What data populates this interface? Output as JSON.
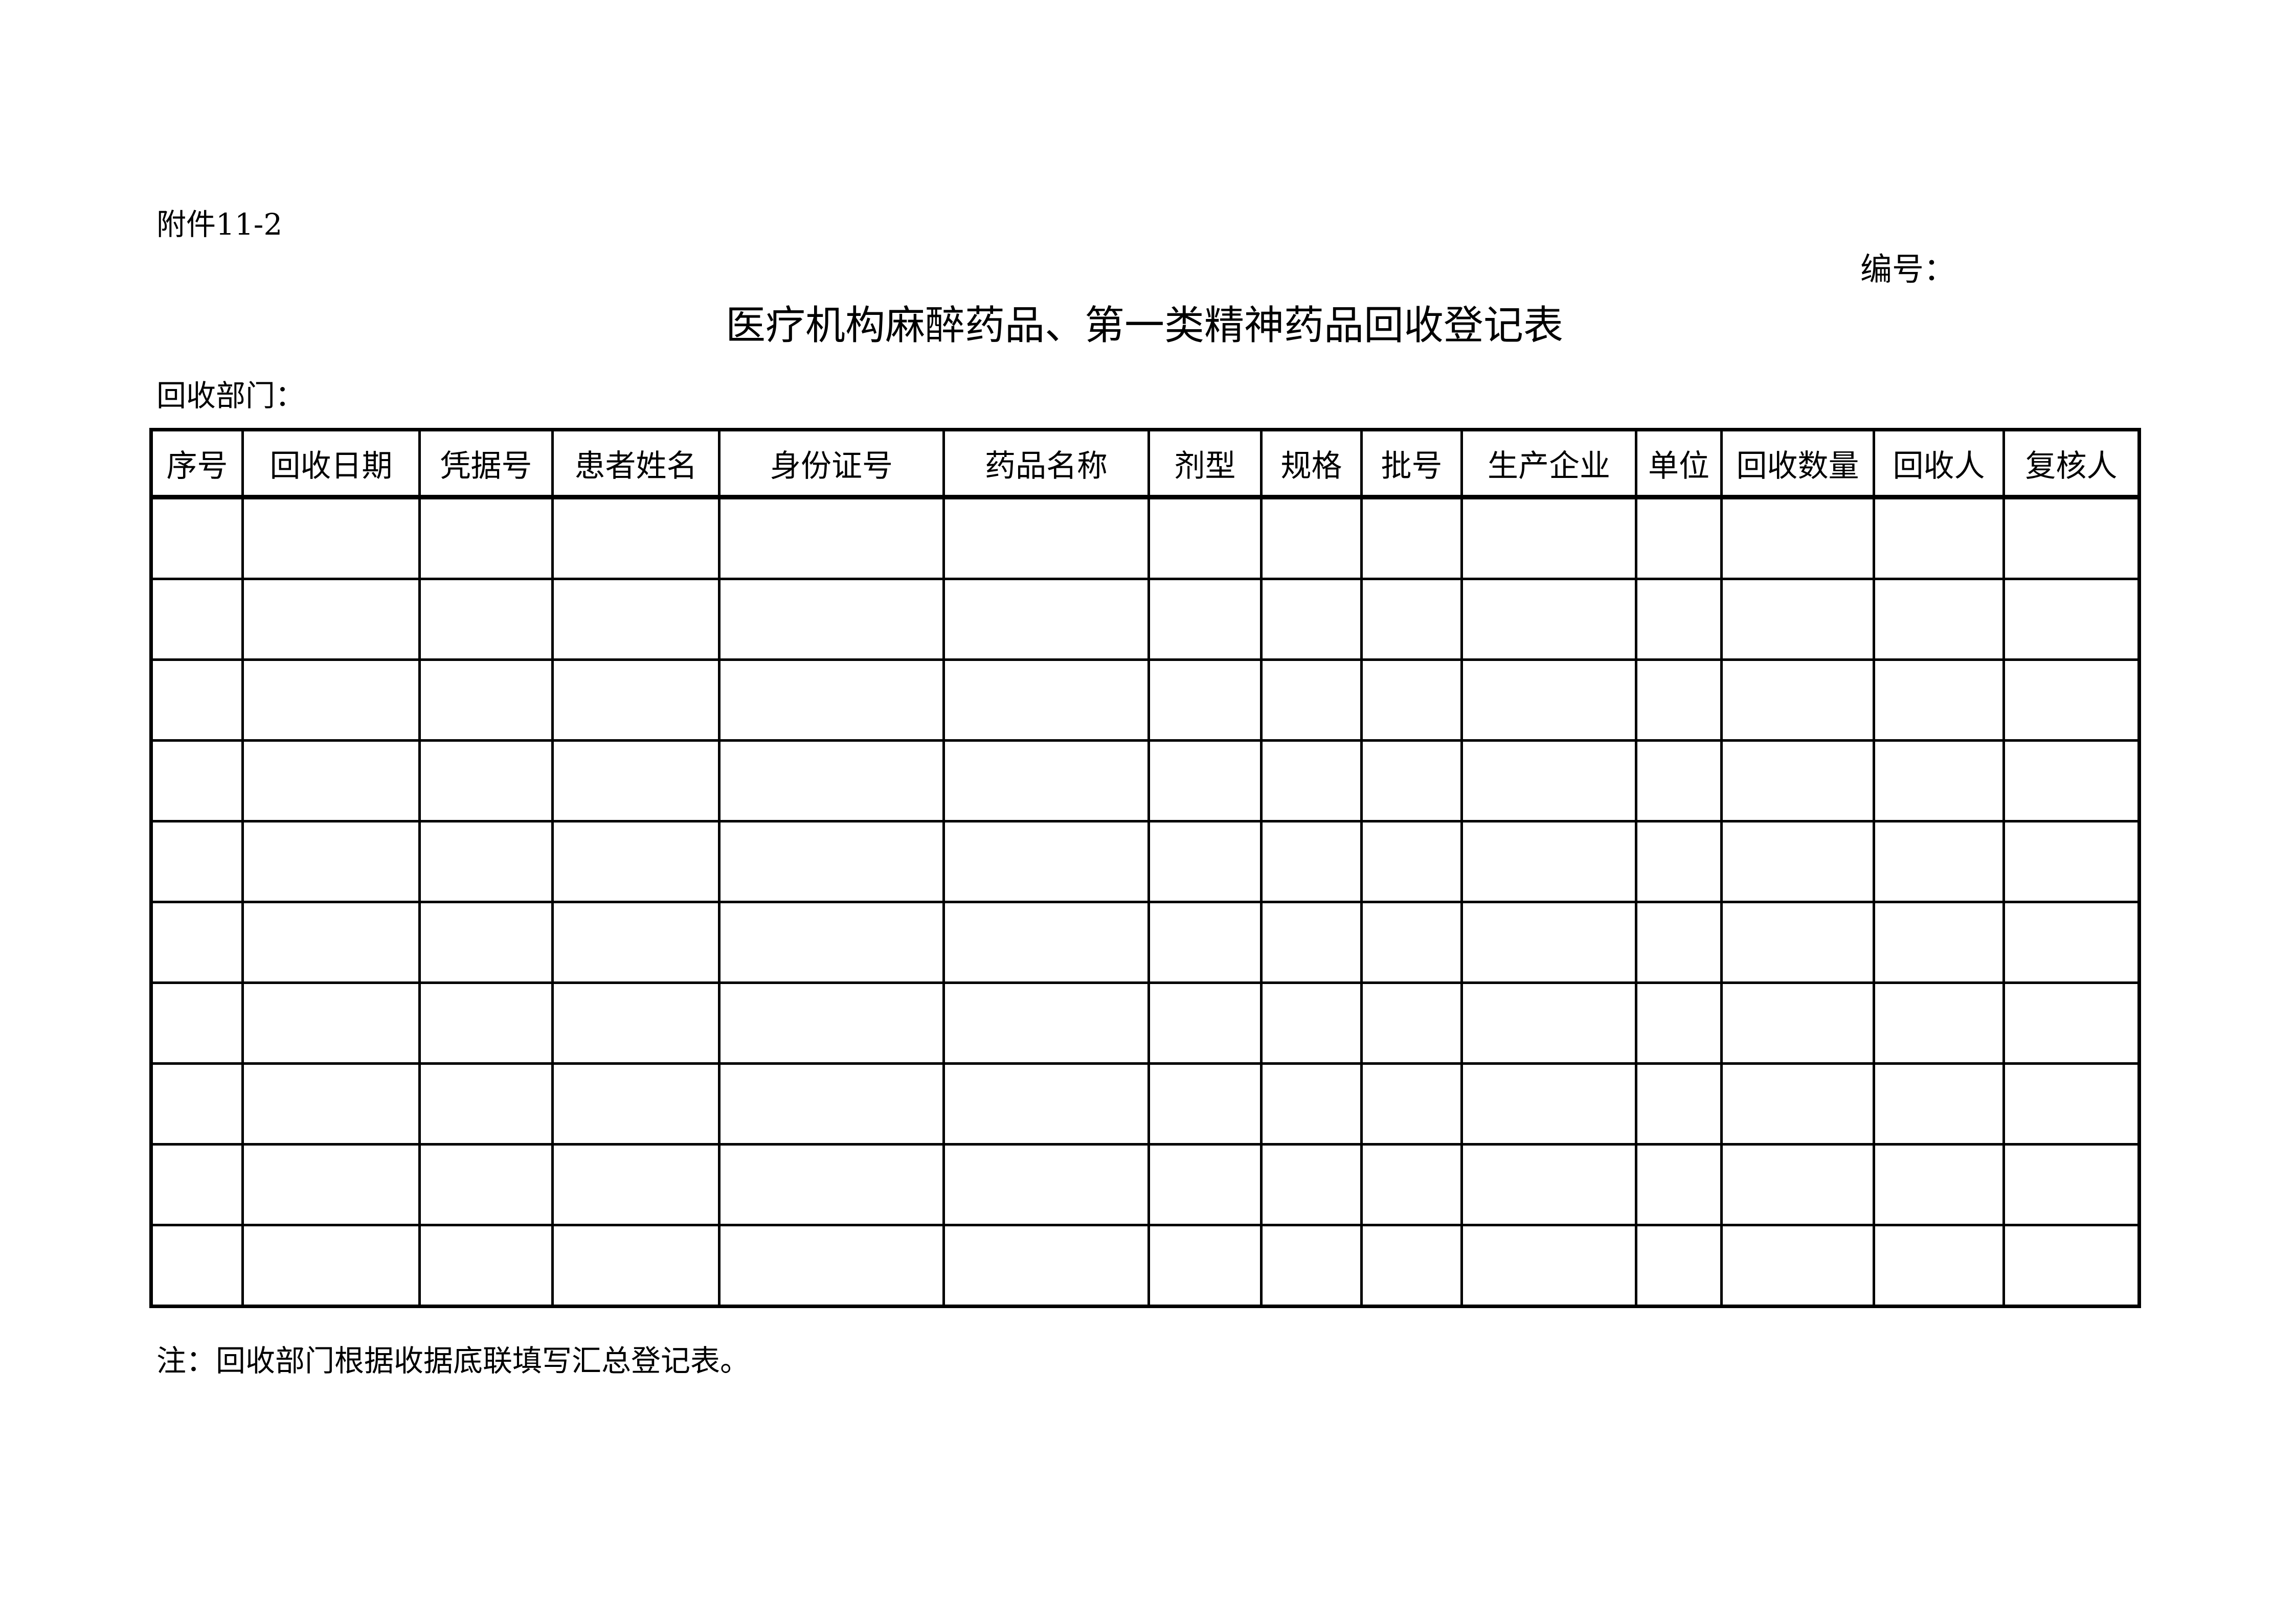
{
  "document": {
    "attachment_label": "附件11-2",
    "serial_label": "编号：",
    "title": "医疗机构麻醉药品、第一类精神药品回收登记表",
    "department_label": "回收部门：",
    "note": "注：回收部门根据收据底联填写汇总登记表。"
  },
  "table": {
    "headers": [
      "序号",
      "回收日期",
      "凭据号",
      "患者姓名",
      "身份证号",
      "药品名称",
      "剂型",
      "规格",
      "批号",
      "生产企业",
      "单位",
      "回收数量",
      "回收人",
      "复核人"
    ],
    "rows": [
      [
        "",
        "",
        "",
        "",
        "",
        "",
        "",
        "",
        "",
        "",
        "",
        "",
        "",
        ""
      ],
      [
        "",
        "",
        "",
        "",
        "",
        "",
        "",
        "",
        "",
        "",
        "",
        "",
        "",
        ""
      ],
      [
        "",
        "",
        "",
        "",
        "",
        "",
        "",
        "",
        "",
        "",
        "",
        "",
        "",
        ""
      ],
      [
        "",
        "",
        "",
        "",
        "",
        "",
        "",
        "",
        "",
        "",
        "",
        "",
        "",
        ""
      ],
      [
        "",
        "",
        "",
        "",
        "",
        "",
        "",
        "",
        "",
        "",
        "",
        "",
        "",
        ""
      ],
      [
        "",
        "",
        "",
        "",
        "",
        "",
        "",
        "",
        "",
        "",
        "",
        "",
        "",
        ""
      ],
      [
        "",
        "",
        "",
        "",
        "",
        "",
        "",
        "",
        "",
        "",
        "",
        "",
        "",
        ""
      ],
      [
        "",
        "",
        "",
        "",
        "",
        "",
        "",
        "",
        "",
        "",
        "",
        "",
        "",
        ""
      ],
      [
        "",
        "",
        "",
        "",
        "",
        "",
        "",
        "",
        "",
        "",
        "",
        "",
        "",
        ""
      ],
      [
        "",
        "",
        "",
        "",
        "",
        "",
        "",
        "",
        "",
        "",
        "",
        "",
        "",
        ""
      ]
    ]
  }
}
